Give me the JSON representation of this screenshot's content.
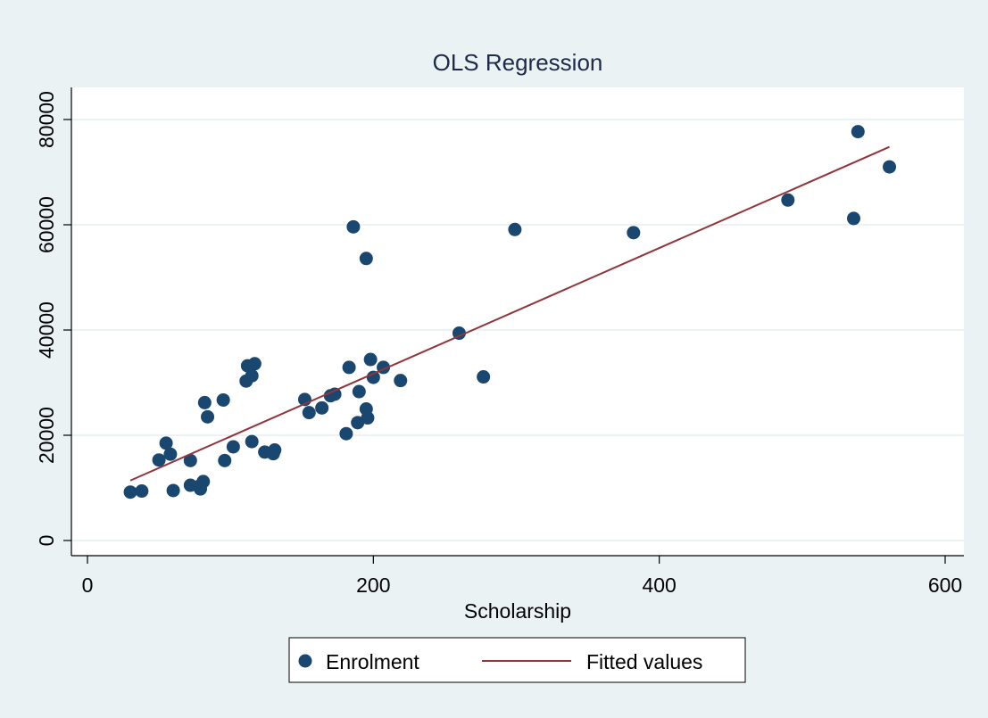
{
  "chart_data": {
    "type": "scatter",
    "title": "OLS Regression",
    "xlabel": "Scholarship",
    "ylabel": "",
    "xlim": [
      0,
      600
    ],
    "ylim": [
      0,
      80000
    ],
    "x_ticks": [
      0,
      200,
      400,
      600
    ],
    "y_ticks": [
      0,
      20000,
      40000,
      60000,
      80000
    ],
    "x_tick_labels": [
      "0",
      "200",
      "400",
      "600"
    ],
    "y_tick_labels": [
      "0",
      "20000",
      "40000",
      "60000",
      "80000"
    ],
    "grid": true,
    "legend_position": "bottom",
    "series": [
      {
        "name": "Enrolment",
        "kind": "scatter",
        "points": [
          [
            30,
            9200
          ],
          [
            38,
            9400
          ],
          [
            50,
            15300
          ],
          [
            55,
            18500
          ],
          [
            58,
            16400
          ],
          [
            60,
            9500
          ],
          [
            72,
            15200
          ],
          [
            72,
            10500
          ],
          [
            78,
            10300
          ],
          [
            79,
            9800
          ],
          [
            81,
            11200
          ],
          [
            82,
            26200
          ],
          [
            84,
            23500
          ],
          [
            95,
            26700
          ],
          [
            96,
            15200
          ],
          [
            102,
            17800
          ],
          [
            111,
            30300
          ],
          [
            112,
            33200
          ],
          [
            115,
            18800
          ],
          [
            115,
            31300
          ],
          [
            117,
            33600
          ],
          [
            124,
            16800
          ],
          [
            130,
            16500
          ],
          [
            131,
            17200
          ],
          [
            152,
            26800
          ],
          [
            155,
            24300
          ],
          [
            164,
            25200
          ],
          [
            170,
            27500
          ],
          [
            173,
            27800
          ],
          [
            181,
            20300
          ],
          [
            183,
            32900
          ],
          [
            186,
            59600
          ],
          [
            189,
            22400
          ],
          [
            190,
            28300
          ],
          [
            195,
            25000
          ],
          [
            195,
            53600
          ],
          [
            196,
            23300
          ],
          [
            198,
            34400
          ],
          [
            200,
            31000
          ],
          [
            207,
            32900
          ],
          [
            219,
            30400
          ],
          [
            260,
            39400
          ],
          [
            277,
            31100
          ],
          [
            299,
            59100
          ],
          [
            382,
            58500
          ],
          [
            490,
            64700
          ],
          [
            536,
            61200
          ],
          [
            539,
            77700
          ],
          [
            561,
            71000
          ]
        ]
      },
      {
        "name": "Fitted values",
        "kind": "line",
        "points": [
          [
            30,
            11400
          ],
          [
            561,
            74800
          ]
        ]
      }
    ]
  },
  "colors": {
    "background": "#eaf2f3",
    "plot_background": "#ffffff",
    "grid": "#eaf2f3",
    "marker": "#1a476f",
    "fit_line": "#90353b",
    "title": "#1e2a4a",
    "axis": "#000000"
  }
}
